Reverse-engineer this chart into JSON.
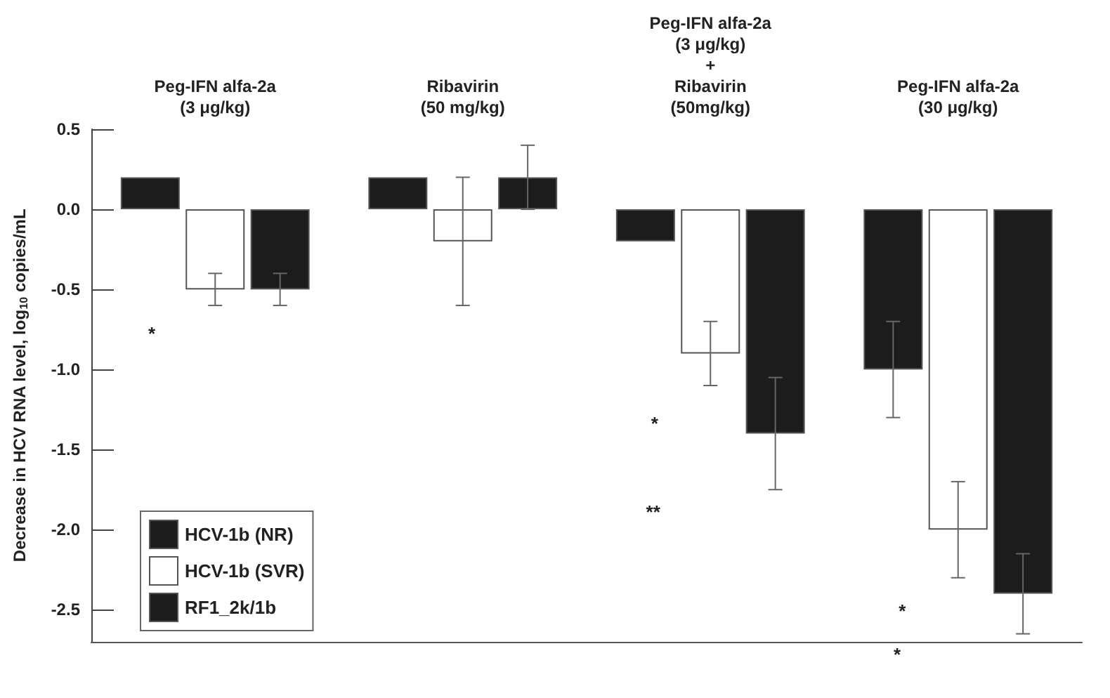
{
  "chart_data": {
    "type": "bar",
    "categories": [
      "Peg-IFN alfa-2a\n(3 μg/kg)",
      "Ribavirin\n(50 mg/kg)",
      "Peg-IFN alfa-2a\n(3 μg/kg)\n+\nRibavirin\n(50mg/kg)",
      "Peg-IFN alfa-2a\n(30 μg/kg)"
    ],
    "ylabel": "Decrease in HCV RNA level, log$_{10}$ copies/mL",
    "series": [
      {
        "name": "HCV-1b (NR)",
        "color": "#1c1c1c",
        "values": [
          0.2,
          0.2,
          -0.2,
          -1.0
        ],
        "errors": [
          null,
          null,
          null,
          0.3
        ]
      },
      {
        "name": "HCV-1b (SVR)",
        "color": "#ffffff",
        "values": [
          -0.5,
          -0.2,
          -0.9,
          -2.0
        ],
        "errors": [
          0.1,
          0.4,
          0.2,
          0.3
        ]
      },
      {
        "name": "RF1_2k/1b",
        "color": "#1c1c1c",
        "values": [
          -0.5,
          0.2,
          -1.4,
          -2.4
        ],
        "errors": [
          0.1,
          0.2,
          0.35,
          0.25
        ]
      }
    ],
    "ylim": [
      -2.7,
      0.5
    ],
    "yticks": [
      0.5,
      {
        "value": 0,
        "label": "0.0"
      },
      -0.5,
      {
        "value": -1,
        "label": "-1.0"
      },
      -1.5,
      {
        "value": -2,
        "label": "-2.0"
      },
      -2.5
    ],
    "grid": false,
    "legend": "bottom left",
    "annotations": [
      "*",
      "*",
      "**",
      "*",
      "*"
    ]
  }
}
